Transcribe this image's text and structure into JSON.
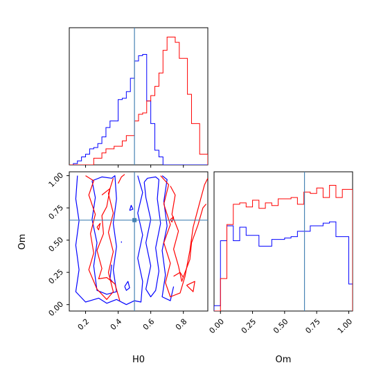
{
  "chart_data": {
    "type": "corner",
    "parameters": [
      "H0",
      "Om"
    ],
    "truths": {
      "H0": 0.5,
      "Om": 0.655
    },
    "truth_color": "#4682b4",
    "series": [
      {
        "color": "#0000ff"
      },
      {
        "color": "#ff0000"
      }
    ],
    "panels": [
      {
        "id": "hist-H0",
        "type": "histogram",
        "xlim": [
          0.1,
          0.95
        ],
        "ylim": [
          0,
          1.03
        ],
        "y_ticks": false,
        "bin_edges": [
          0.1,
          0.125,
          0.15,
          0.175,
          0.2,
          0.225,
          0.25,
          0.275,
          0.3,
          0.325,
          0.35,
          0.375,
          0.4,
          0.425,
          0.45,
          0.475,
          0.5,
          0.525,
          0.55,
          0.575,
          0.6,
          0.625,
          0.65,
          0.675,
          0.7,
          0.725,
          0.75,
          0.775,
          0.8,
          0.825,
          0.85,
          0.875,
          0.9,
          0.925,
          0.95
        ],
        "counts": [
          [
            0,
            0.01,
            0.03,
            0.06,
            0.08,
            0.12,
            0.13,
            0.16,
            0.21,
            0.28,
            0.33,
            0.33,
            0.49,
            0.5,
            0.55,
            0.65,
            0.78,
            0.82,
            0.83,
            0.48,
            0.31,
            0.11,
            0.06,
            0,
            0,
            0,
            0,
            0,
            0,
            0,
            0,
            0,
            0,
            0
          ],
          [
            0,
            0,
            0,
            0,
            0,
            0,
            0.05,
            0.05,
            0.09,
            0.12,
            0.12,
            0.14,
            0.14,
            0.18,
            0.22,
            0.22,
            0.33,
            0.38,
            0.39,
            0.48,
            0.52,
            0.59,
            0.69,
            0.86,
            0.96,
            0.96,
            0.92,
            0.8,
            0.8,
            0.53,
            0.31,
            0.31,
            0.08,
            0.08
          ]
        ],
        "x_tick_values": [
          0.2,
          0.4,
          0.6,
          0.8
        ],
        "x_tick_labels": [
          "0.2",
          "0.4",
          "0.6",
          "0.8"
        ]
      },
      {
        "id": "hist-Om",
        "type": "histogram",
        "xlim": [
          -0.05,
          1.03
        ],
        "ylim": [
          0,
          1.03
        ],
        "y_ticks": false,
        "bin_edges": [
          -0.05,
          0.0,
          0.05,
          0.1,
          0.15,
          0.2,
          0.25,
          0.3,
          0.35,
          0.4,
          0.45,
          0.5,
          0.55,
          0.6,
          0.65,
          0.7,
          0.75,
          0.8,
          0.85,
          0.9,
          0.95,
          1.0,
          1.03
        ],
        "counts": [
          [
            0.04,
            0.52,
            0.63,
            0.52,
            0.62,
            0.56,
            0.56,
            0.48,
            0.48,
            0.53,
            0.53,
            0.54,
            0.55,
            0.59,
            0.59,
            0.63,
            0.63,
            0.65,
            0.66,
            0.55,
            0.55,
            0.2
          ],
          [
            0,
            0.24,
            0.64,
            0.79,
            0.8,
            0.77,
            0.82,
            0.76,
            0.8,
            0.78,
            0.83,
            0.83,
            0.84,
            0.79,
            0.88,
            0.87,
            0.91,
            0.84,
            0.93,
            0.84,
            0.9,
            0.9
          ]
        ],
        "x_tick_values": [
          0.0,
          0.25,
          0.5,
          0.75,
          1.0
        ],
        "x_tick_labels": [
          "0.00",
          "0.25",
          "0.50",
          "0.75",
          "1.00"
        ],
        "xlabel": "Om"
      },
      {
        "id": "contour-H0-Om",
        "type": "contour",
        "xlim": [
          0.1,
          0.95
        ],
        "ylim": [
          -0.05,
          1.03
        ],
        "x_tick_values": [
          0.2,
          0.4,
          0.6,
          0.8
        ],
        "x_tick_labels": [
          "0.2",
          "0.4",
          "0.6",
          "0.8"
        ],
        "y_tick_values": [
          0.0,
          0.25,
          0.5,
          0.75,
          1.0
        ],
        "y_tick_labels": [
          "0.00",
          "0.25",
          "0.50",
          "0.75",
          "1.00"
        ],
        "xlabel": "H0",
        "ylabel": "Om",
        "contours": [
          {
            "series": 0,
            "points": [
              [
                0.15,
                1.0
              ],
              [
                0.14,
                0.82
              ],
              [
                0.16,
                0.65
              ],
              [
                0.14,
                0.46
              ],
              [
                0.16,
                0.27
              ],
              [
                0.14,
                0.1
              ],
              [
                0.2,
                0.02
              ],
              [
                0.28,
                0.05
              ],
              [
                0.33,
                0.01
              ],
              [
                0.39,
                0.04
              ],
              [
                0.45,
                0.0
              ],
              [
                0.5,
                0.03
              ],
              [
                0.54,
                0.02
              ],
              [
                0.55,
                0.18
              ],
              [
                0.52,
                0.36
              ],
              [
                0.55,
                0.54
              ],
              [
                0.52,
                0.71
              ],
              [
                0.55,
                0.87
              ],
              [
                0.52,
                1.0
              ]
            ]
          },
          {
            "series": 0,
            "points": [
              [
                0.56,
                0.95
              ],
              [
                0.58,
                0.98
              ],
              [
                0.63,
                0.99
              ],
              [
                0.65,
                0.97
              ],
              [
                0.64,
                0.82
              ],
              [
                0.66,
                0.63
              ],
              [
                0.63,
                0.44
              ],
              [
                0.65,
                0.26
              ],
              [
                0.63,
                0.11
              ],
              [
                0.6,
                0.06
              ],
              [
                0.57,
                0.12
              ],
              [
                0.6,
                0.3
              ],
              [
                0.57,
                0.48
              ],
              [
                0.6,
                0.66
              ],
              [
                0.57,
                0.83
              ],
              [
                0.56,
                0.95
              ]
            ]
          },
          {
            "series": 0,
            "points": [
              [
                0.24,
                0.96
              ],
              [
                0.3,
                0.99
              ],
              [
                0.36,
                0.98
              ],
              [
                0.38,
                1.0
              ],
              [
                0.39,
                0.82
              ],
              [
                0.37,
                0.63
              ],
              [
                0.39,
                0.45
              ],
              [
                0.37,
                0.27
              ],
              [
                0.39,
                0.1
              ],
              [
                0.33,
                0.08
              ],
              [
                0.27,
                0.11
              ],
              [
                0.25,
                0.3
              ],
              [
                0.27,
                0.48
              ],
              [
                0.24,
                0.66
              ],
              [
                0.26,
                0.83
              ],
              [
                0.24,
                0.96
              ]
            ]
          },
          {
            "series": 0,
            "points": [
              [
                0.67,
                1.0
              ],
              [
                0.7,
                0.97
              ],
              [
                0.68,
                0.8
              ],
              [
                0.7,
                0.61
              ],
              [
                0.67,
                0.42
              ],
              [
                0.69,
                0.23
              ],
              [
                0.67,
                0.06
              ],
              [
                0.72,
                0.03
              ],
              [
                0.74,
                0.14
              ]
            ]
          },
          {
            "series": 0,
            "points": [
              [
                0.36,
                0.31
              ],
              [
                0.35,
                0.2
              ],
              [
                0.37,
                0.17
              ]
            ]
          },
          {
            "series": 0,
            "points": [
              [
                0.44,
                0.14
              ],
              [
                0.46,
                0.18
              ],
              [
                0.47,
                0.13
              ],
              [
                0.45,
                0.11
              ],
              [
                0.44,
                0.14
              ]
            ]
          },
          {
            "series": 0,
            "points": [
              [
                0.47,
                0.73
              ],
              [
                0.48,
                0.77
              ],
              [
                0.49,
                0.74
              ],
              [
                0.47,
                0.73
              ]
            ]
          },
          {
            "series": 0,
            "points": [
              [
                0.42,
                0.48
              ],
              [
                0.42,
                0.49
              ]
            ]
          },
          {
            "series": 1,
            "points": [
              [
                0.2,
                1.0
              ],
              [
                0.25,
                0.96
              ],
              [
                0.22,
                0.85
              ],
              [
                0.26,
                0.7
              ],
              [
                0.23,
                0.55
              ],
              [
                0.25,
                0.4
              ],
              [
                0.22,
                0.27
              ],
              [
                0.27,
                0.12
              ],
              [
                0.33,
                0.04
              ],
              [
                0.37,
                0.1
              ],
              [
                0.34,
                0.25
              ],
              [
                0.37,
                0.41
              ],
              [
                0.34,
                0.56
              ],
              [
                0.37,
                0.71
              ],
              [
                0.34,
                0.86
              ],
              [
                0.37,
                0.98
              ]
            ]
          },
          {
            "series": 1,
            "points": [
              [
                0.3,
                0.85
              ],
              [
                0.35,
                0.9
              ],
              [
                0.33,
                0.76
              ],
              [
                0.3,
                0.69
              ],
              [
                0.31,
                0.55
              ],
              [
                0.27,
                0.42
              ],
              [
                0.3,
                0.28
              ],
              [
                0.28,
                0.2
              ],
              [
                0.33,
                0.21
              ],
              [
                0.38,
                0.16
              ],
              [
                0.41,
                0.03
              ]
            ]
          },
          {
            "series": 1,
            "points": [
              [
                0.66,
                1.0
              ],
              [
                0.71,
                0.93
              ],
              [
                0.68,
                0.78
              ],
              [
                0.72,
                0.62
              ],
              [
                0.68,
                0.48
              ],
              [
                0.72,
                0.32
              ],
              [
                0.69,
                0.17
              ],
              [
                0.72,
                0.06
              ],
              [
                0.78,
                0.09
              ],
              [
                0.81,
                0.22
              ],
              [
                0.84,
                0.42
              ],
              [
                0.86,
                0.6
              ],
              [
                0.9,
                0.79
              ],
              [
                0.93,
                0.93
              ],
              [
                0.95,
                0.98
              ]
            ]
          },
          {
            "series": 1,
            "points": [
              [
                0.72,
                0.92
              ],
              [
                0.75,
                0.85
              ],
              [
                0.73,
                0.7
              ],
              [
                0.77,
                0.57
              ],
              [
                0.74,
                0.43
              ],
              [
                0.77,
                0.3
              ],
              [
                0.79,
                0.18
              ],
              [
                0.81,
                0.25
              ],
              [
                0.84,
                0.35
              ],
              [
                0.85,
                0.48
              ],
              [
                0.89,
                0.62
              ],
              [
                0.92,
                0.75
              ],
              [
                0.94,
                0.78
              ]
            ]
          },
          {
            "series": 1,
            "points": [
              [
                0.74,
                0.22
              ],
              [
                0.78,
                0.25
              ],
              [
                0.8,
                0.21
              ]
            ]
          },
          {
            "series": 1,
            "points": [
              [
                0.82,
                0.15
              ],
              [
                0.87,
                0.18
              ],
              [
                0.86,
                0.1
              ],
              [
                0.82,
                0.15
              ]
            ]
          },
          {
            "series": 1,
            "points": [
              [
                0.4,
                0.94
              ],
              [
                0.42,
                0.99
              ],
              [
                0.44,
                1.01
              ]
            ]
          },
          {
            "series": 1,
            "points": [
              [
                0.72,
                0.66
              ],
              [
                0.74,
                0.68
              ],
              [
                0.73,
                0.64
              ],
              [
                0.72,
                0.66
              ]
            ]
          },
          {
            "series": 1,
            "points": [
              [
                0.27,
                0.6
              ],
              [
                0.29,
                0.63
              ],
              [
                0.28,
                0.58
              ],
              [
                0.27,
                0.6
              ]
            ]
          }
        ]
      }
    ]
  }
}
